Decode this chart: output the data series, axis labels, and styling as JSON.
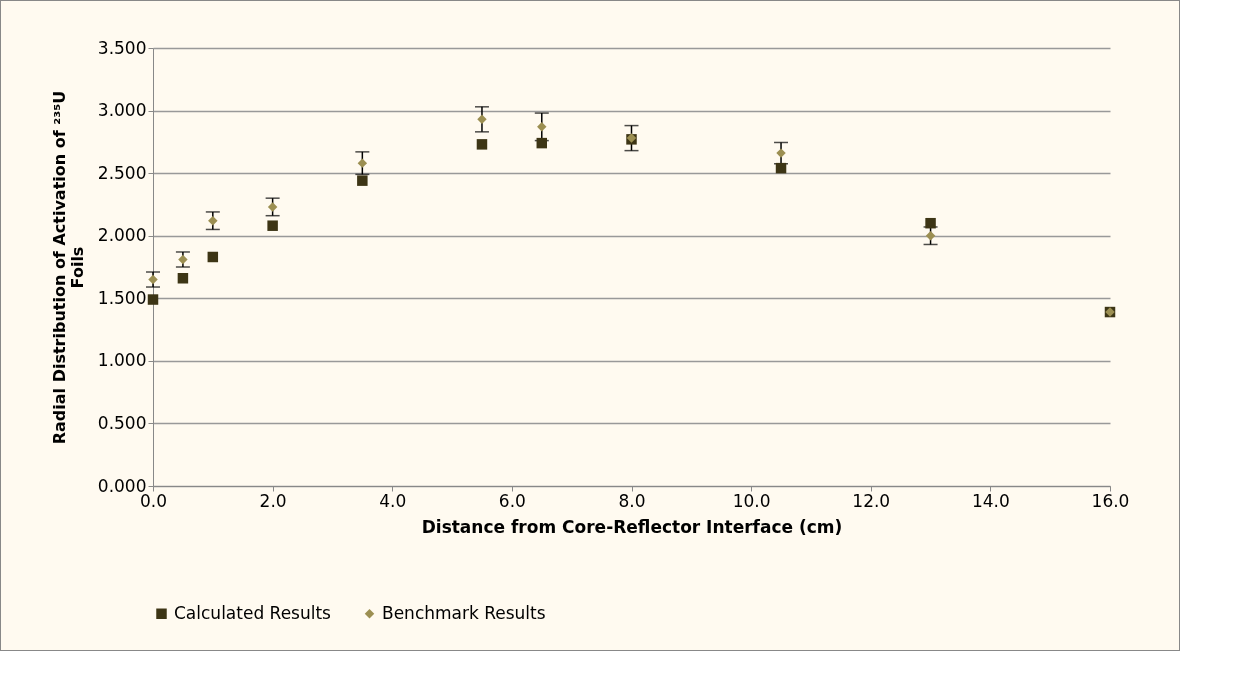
{
  "chart_data": {
    "type": "scatter",
    "xlabel": "Distance from Core-Reflector Interface (cm)",
    "ylabel": "Radial Distribution of Activation of ²³⁵U Foils",
    "x": [
      0,
      0.5,
      1,
      2,
      3.5,
      5.5,
      6.5,
      8,
      10.5,
      13,
      16
    ],
    "series": [
      {
        "name": "Calculated Results",
        "color": "#3d3515",
        "marker": "square",
        "values": [
          1.49,
          1.66,
          1.83,
          2.08,
          2.44,
          2.73,
          2.74,
          2.77,
          2.54,
          2.1,
          1.39
        ]
      },
      {
        "name": "Benchmark Results",
        "color": "#9c8f52",
        "marker": "diamond",
        "values": [
          1.65,
          1.81,
          2.12,
          2.23,
          2.58,
          2.93,
          2.87,
          2.78,
          2.66,
          2.0,
          1.39
        ],
        "errors": [
          0.06,
          0.06,
          0.07,
          0.07,
          0.09,
          0.1,
          0.11,
          0.1,
          0.085,
          0.07,
          null
        ]
      }
    ],
    "xlim": [
      0,
      16
    ],
    "xticks": [
      {
        "value": 0,
        "label": "0.0"
      },
      {
        "value": 2,
        "label": "2.0"
      },
      {
        "value": 4,
        "label": "4.0"
      },
      {
        "value": 6,
        "label": "6.0"
      },
      {
        "value": 8,
        "label": "8.0"
      },
      {
        "value": 10,
        "label": "10.0"
      },
      {
        "value": 12,
        "label": "12.0"
      },
      {
        "value": 14,
        "label": "14.0"
      },
      {
        "value": 16,
        "label": "16.0"
      }
    ],
    "ylim": [
      0,
      3.5
    ],
    "yticks": [
      {
        "value": 0,
        "label": "0.000"
      },
      {
        "value": 0.5,
        "label": "0.500"
      },
      {
        "value": 1,
        "label": "1.000"
      },
      {
        "value": 1.5,
        "label": "1.500"
      },
      {
        "value": 2,
        "label": "2.000"
      },
      {
        "value": 2.5,
        "label": "2.500"
      },
      {
        "value": 3,
        "label": "3.000"
      },
      {
        "value": 3.5,
        "label": "3.500"
      }
    ],
    "grid": "y",
    "legend": "bottom"
  }
}
